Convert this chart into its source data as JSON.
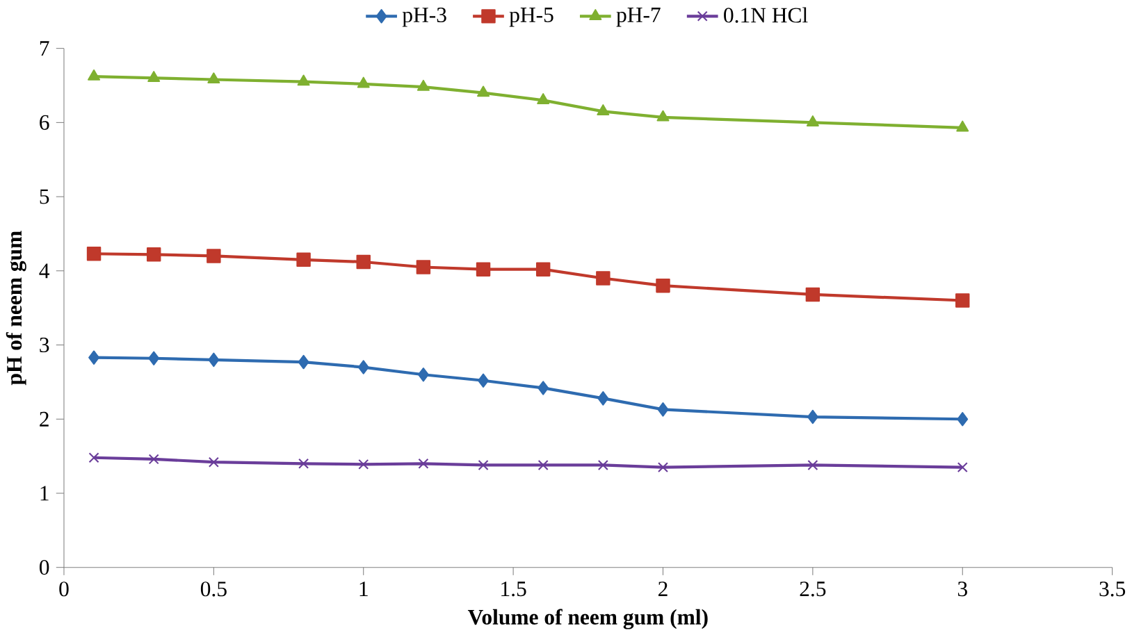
{
  "chart_data": {
    "type": "line",
    "xlabel": "Volume of neem gum (ml)",
    "ylabel": "pH of neem gum",
    "x": [
      0.1,
      0.3,
      0.5,
      0.8,
      1.0,
      1.2,
      1.4,
      1.6,
      1.8,
      2.0,
      2.5,
      3.0
    ],
    "xlim": [
      0,
      3.5
    ],
    "xticks": [
      0,
      0.5,
      1,
      1.5,
      2,
      2.5,
      3,
      3.5
    ],
    "ylim": [
      0,
      7
    ],
    "yticks": [
      0,
      1,
      2,
      3,
      4,
      5,
      6,
      7
    ],
    "legend": "top",
    "grid": false,
    "series": [
      {
        "name": "pH-3",
        "color": "#2e6bb0",
        "marker": "diamond",
        "values": [
          2.83,
          2.82,
          2.8,
          2.77,
          2.7,
          2.6,
          2.52,
          2.42,
          2.28,
          2.13,
          2.03,
          2.0
        ]
      },
      {
        "name": "pH-5",
        "color": "#c0392b",
        "marker": "square",
        "values": [
          4.23,
          4.22,
          4.2,
          4.15,
          4.12,
          4.05,
          4.02,
          4.02,
          3.9,
          3.8,
          3.68,
          3.6
        ]
      },
      {
        "name": "pH-7",
        "color": "#7fb030",
        "marker": "triangle",
        "values": [
          6.62,
          6.6,
          6.58,
          6.55,
          6.52,
          6.48,
          6.4,
          6.3,
          6.15,
          6.07,
          6.0,
          5.93
        ]
      },
      {
        "name": "0.1N HCl",
        "color": "#6a3d9a",
        "marker": "cross",
        "values": [
          1.48,
          1.46,
          1.42,
          1.4,
          1.39,
          1.4,
          1.38,
          1.38,
          1.38,
          1.35,
          1.38,
          1.35
        ]
      }
    ]
  }
}
